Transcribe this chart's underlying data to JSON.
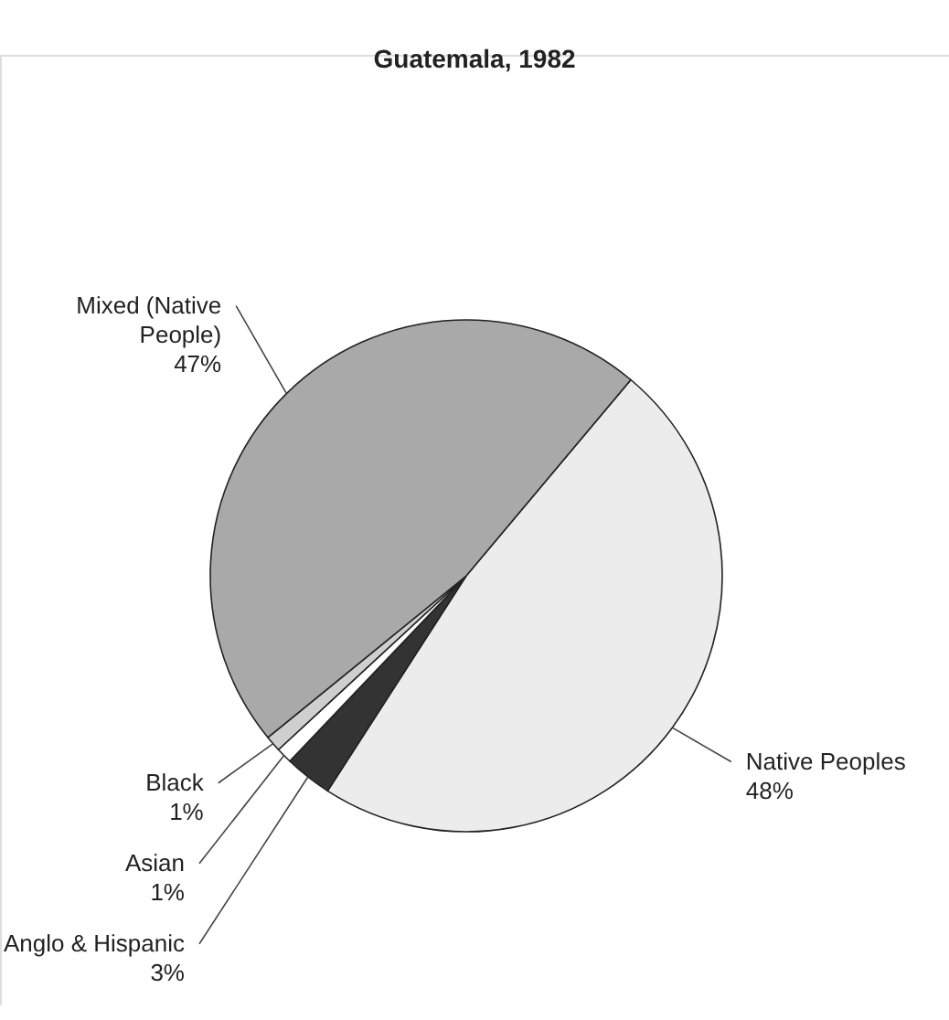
{
  "chart_data": {
    "type": "pie",
    "title": "Guatemala, 1982",
    "categories": [
      "Native Peoples",
      "Anglo & Hispanic",
      "Asian",
      "Black",
      "Mixed (Native People)"
    ],
    "values": [
      48,
      3,
      1,
      1,
      47
    ],
    "colors": [
      "#ececec",
      "#333333",
      "#ffffff",
      "#cfcfcf",
      "#a9a9a9"
    ],
    "value_labels": [
      "48%",
      "3%",
      "1%",
      "1%",
      "47%"
    ],
    "legend": false
  }
}
